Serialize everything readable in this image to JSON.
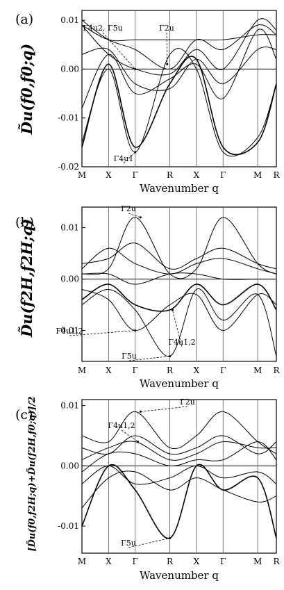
{
  "chart_data": [
    {
      "type": "line",
      "panel_label": "(a)",
      "ylabel": "D̃u(f0,f0;q)",
      "xlabel": "Wavenumber q",
      "xticks": [
        "M",
        "X",
        "Γ",
        "R",
        "X",
        "Γ",
        "M",
        "R"
      ],
      "yticks": [
        "0.01",
        "0.00",
        "-0.01",
        "-0.02"
      ],
      "ytick_values": [
        0.01,
        0.0,
        -0.01,
        -0.02
      ],
      "ylim": [
        -0.02,
        0.012
      ],
      "x_positions": [
        0,
        1,
        2,
        3.3,
        4.3,
        5.3,
        6.6,
        7.3
      ],
      "grid": false,
      "annotations": [
        "Γ4u2, Γ5u",
        "Γ2u",
        "Γ4u1"
      ],
      "series": [
        {
          "values": [
            0.009,
            0.006,
            0.006,
            0.006,
            0.006,
            0.006,
            0.007,
            0.007
          ]
        },
        {
          "values": [
            0.01,
            0.006,
            0.004,
            0.0,
            0.006,
            0.004,
            0.009,
            0.007
          ]
        },
        {
          "values": [
            0.009,
            0.003,
            0.0,
            -0.001,
            0.004,
            0.0,
            0.01,
            0.008
          ]
        },
        {
          "values": [
            0.003,
            0.004,
            -0.003,
            -0.004,
            0.002,
            -0.003,
            0.004,
            0.004
          ]
        },
        {
          "values": [
            -0.008,
            0.003,
            -0.005,
            -0.002,
            0.001,
            -0.006,
            0.008,
            0.002
          ]
        },
        {
          "values": [
            -0.015,
            0.0,
            -0.017,
            0.003,
            0.0,
            -0.017,
            -0.014,
            -0.003
          ]
        },
        {
          "values": [
            -0.016,
            0.001,
            -0.016,
            -0.003,
            0.002,
            -0.016,
            -0.015,
            -0.003
          ]
        }
      ]
    },
    {
      "type": "line",
      "panel_label": "(b)",
      "ylabel": "D̃u(f2H,f2H;q)",
      "xlabel": "Wavenumber q",
      "xticks": [
        "M",
        "X",
        "Γ",
        "R",
        "X",
        "Γ",
        "M",
        "R"
      ],
      "yticks": [
        "0.01",
        "0.00",
        "-0.01"
      ],
      "ytick_values": [
        0.01,
        0.0,
        -0.01
      ],
      "ylim": [
        -0.016,
        0.014
      ],
      "x_positions": [
        0,
        1,
        2,
        3.3,
        4.3,
        5.3,
        6.6,
        7.3
      ],
      "grid": false,
      "annotations": [
        "Γ2u",
        "Γ4u1,2",
        "Γ5u",
        "Γ4u1,2"
      ],
      "series": [
        {
          "values": [
            0.001,
            0.002,
            0.012,
            0.001,
            0.002,
            0.012,
            0.003,
            0.001
          ]
        },
        {
          "values": [
            0.003,
            0.004,
            0.007,
            0.002,
            0.004,
            0.006,
            0.003,
            0.002
          ]
        },
        {
          "values": [
            0.002,
            0.006,
            0.003,
            0.001,
            0.003,
            0.004,
            0.002,
            0.001
          ]
        },
        {
          "values": [
            0.001,
            0.001,
            -0.001,
            0.001,
            0.001,
            0.0,
            0.0,
            0.0
          ]
        },
        {
          "values": [
            -0.002,
            -0.004,
            -0.01,
            -0.005,
            -0.003,
            -0.01,
            -0.003,
            -0.005
          ]
        },
        {
          "values": [
            -0.005,
            -0.002,
            -0.006,
            -0.015,
            -0.002,
            -0.008,
            -0.003,
            -0.015
          ]
        },
        {
          "values": [
            -0.004,
            -0.001,
            -0.005,
            -0.006,
            -0.001,
            -0.005,
            -0.001,
            -0.006
          ]
        }
      ]
    },
    {
      "type": "line",
      "panel_label": "(c)",
      "ylabel": "[D̃u(f0,f2H;q)+D̃u(f2H,f0;q)]/2",
      "xlabel": "Wavenumber q",
      "xticks": [
        "M",
        "X",
        "Γ",
        "R",
        "X",
        "Γ",
        "M",
        "R"
      ],
      "yticks": [
        "0.01",
        "0.00",
        "-0.01"
      ],
      "ytick_values": [
        0.01,
        0.0,
        -0.01
      ],
      "ylim": [
        -0.0145,
        0.011
      ],
      "x_positions": [
        0,
        1,
        2,
        3.3,
        4.3,
        5.3,
        6.6,
        7.3
      ],
      "grid": false,
      "annotations": [
        "Γ2u",
        "Γ4u1,2",
        "Γ5u"
      ],
      "series": [
        {
          "values": [
            0.005,
            0.004,
            0.009,
            0.003,
            0.005,
            0.009,
            0.004,
            0.002
          ]
        },
        {
          "values": [
            0.003,
            0.002,
            0.005,
            0.002,
            0.003,
            0.005,
            0.002,
            0.004
          ]
        },
        {
          "values": [
            0.001,
            0.003,
            0.004,
            0.001,
            0.002,
            0.004,
            0.003,
            0.003
          ]
        },
        {
          "values": [
            -0.001,
            0.002,
            0.002,
            0.0,
            0.001,
            0.001,
            0.004,
            0.001
          ]
        },
        {
          "values": [
            -0.003,
            0.0,
            -0.003,
            -0.002,
            0.0,
            -0.002,
            -0.001,
            -0.003
          ]
        },
        {
          "values": [
            -0.007,
            -0.002,
            -0.001,
            -0.004,
            -0.002,
            -0.004,
            -0.006,
            -0.005
          ]
        },
        {
          "values": [
            -0.01,
            0.0,
            -0.004,
            -0.012,
            0.0,
            -0.004,
            -0.002,
            -0.012
          ]
        }
      ]
    }
  ]
}
